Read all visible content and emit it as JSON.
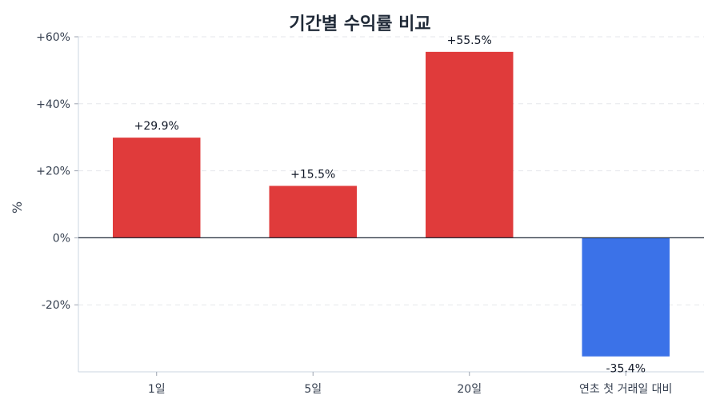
{
  "chart_data": {
    "type": "bar",
    "title": "기간별 수익률 비교",
    "xlabel": "",
    "ylabel": "%",
    "categories": [
      "1일",
      "5일",
      "20일",
      "연초 첫 거래일 대비"
    ],
    "values": [
      29.9,
      15.5,
      55.5,
      -35.4
    ],
    "value_labels": [
      "+29.9%",
      "+15.5%",
      "+55.5%",
      "-35.4%"
    ],
    "ylim": [
      -40,
      60
    ],
    "yticks": [
      60,
      40,
      20,
      0,
      -20
    ],
    "ytick_labels": [
      "+60%",
      "+40%",
      "+20%",
      "0%",
      "-20%"
    ],
    "grid": true,
    "legend": "none",
    "colors": {
      "positive": "#e03b3b",
      "negative": "#3b72e8",
      "zero_line": "#1f2937",
      "grid": "#e5e7eb",
      "axis": "#cbd5e1"
    }
  }
}
